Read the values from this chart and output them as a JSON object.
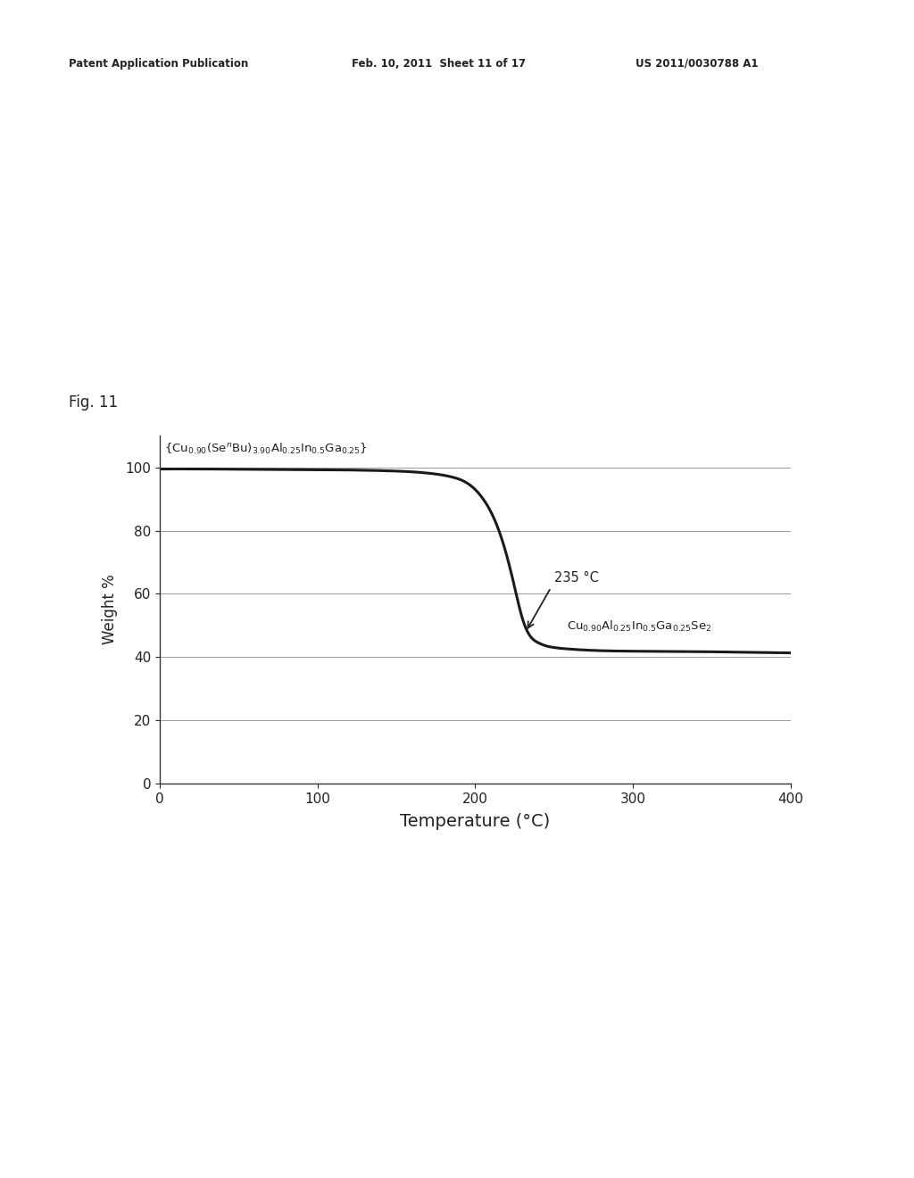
{
  "title": "",
  "fig_label": "Fig. 11",
  "xlabel": "Temperature (°C)",
  "ylabel": "Weight %",
  "xlim": [
    0,
    400
  ],
  "ylim": [
    0,
    110
  ],
  "yticks": [
    0,
    20,
    40,
    60,
    80,
    100
  ],
  "xticks": [
    0,
    100,
    200,
    300,
    400
  ],
  "line_color": "#1a1a1a",
  "annotation_235": "235 °C",
  "annotation_product": "Cu$_{0.90}$Al$_{0.25}$In$_{0.5}$Ga$_{0.25}$Se$_{2}$",
  "curve_label": "{Cu$_{0.90}$(Se$^{\\it n}$Bu)$_{3.90}$Al$_{0.25}$In$_{0.5}$Ga$_{0.25}$}",
  "header_left": "Patent Application Publication",
  "header_mid": "Feb. 10, 2011  Sheet 11 of 17",
  "header_right": "US 2011/0030788 A1",
  "bg_color": "#ffffff",
  "grid_color": "#999999",
  "curve_x": [
    0,
    30,
    60,
    100,
    140,
    170,
    185,
    195,
    205,
    215,
    220,
    225,
    230,
    235,
    240,
    245,
    250,
    260,
    280,
    320,
    370,
    400
  ],
  "curve_y": [
    99.5,
    99.5,
    99.4,
    99.3,
    99.0,
    98.2,
    97.0,
    95.0,
    90.0,
    80.0,
    72.0,
    62.0,
    52.0,
    46.5,
    44.5,
    43.5,
    43.0,
    42.5,
    42.0,
    41.8,
    41.5,
    41.3
  ]
}
